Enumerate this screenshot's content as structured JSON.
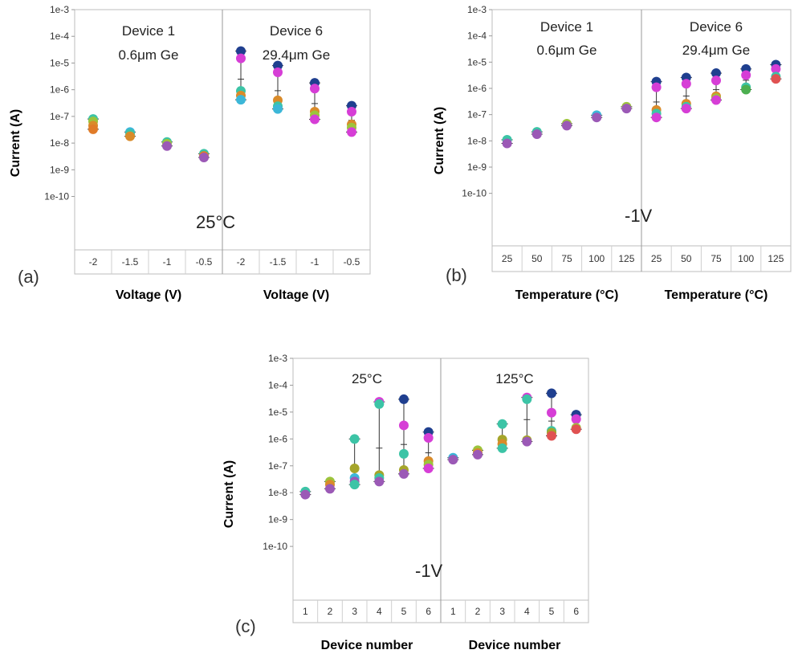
{
  "chart_data": [
    {
      "panel": "(a)",
      "type": "scatter",
      "yscale": "log",
      "ylabel": "Current (A)",
      "ylim": [
        1e-11,
        0.001
      ],
      "yticks": [
        "1e-3",
        "1e-4",
        "1e-5",
        "1e-6",
        "1e-7",
        "1e-8",
        "1e-9",
        "1e-10"
      ],
      "condition": "25°C",
      "groups": [
        {
          "title": [
            "Device 1",
            "0.6μm Ge"
          ],
          "xlabel": "Voltage (V)",
          "categories": [
            "-2",
            "-1.5",
            "-1",
            "-0.5"
          ],
          "points": [
            {
              "x": "-2",
              "y": 8e-08,
              "color": "#3cc4a6"
            },
            {
              "x": "-2",
              "y": 6.5e-08,
              "color": "#9cc43c"
            },
            {
              "x": "-2",
              "y": 4.5e-08,
              "color": "#d98b2a"
            },
            {
              "x": "-2",
              "y": 3.3e-08,
              "color": "#e07b28"
            },
            {
              "x": "-1.5",
              "y": 2.6e-08,
              "color": "#3cb7d8"
            },
            {
              "x": "-1.5",
              "y": 2.2e-08,
              "color": "#3cc4a6"
            },
            {
              "x": "-1.5",
              "y": 1.8e-08,
              "color": "#d98b2a"
            },
            {
              "x": "-1",
              "y": 1.1e-08,
              "color": "#3cc4a6"
            },
            {
              "x": "-1",
              "y": 9.5e-09,
              "color": "#9cc43c"
            },
            {
              "x": "-1",
              "y": 7.8e-09,
              "color": "#9b59b6"
            },
            {
              "x": "-0.5",
              "y": 4e-09,
              "color": "#3cc4a6"
            },
            {
              "x": "-0.5",
              "y": 3.3e-09,
              "color": "#e07b28"
            },
            {
              "x": "-0.5",
              "y": 2.9e-09,
              "color": "#9b59b6"
            }
          ]
        },
        {
          "title": [
            "Device 6",
            "29.4μm Ge"
          ],
          "xlabel": "Voltage (V)",
          "categories": [
            "-2",
            "-1.5",
            "-1",
            "-0.5"
          ],
          "points": [
            {
              "x": "-2",
              "y": 2.8e-05,
              "color": "#1f3f8f"
            },
            {
              "x": "-2",
              "y": 1.5e-05,
              "color": "#d63ed6"
            },
            {
              "x": "-2",
              "y": 9e-07,
              "color": "#3cc4a6"
            },
            {
              "x": "-2",
              "y": 6e-07,
              "color": "#d98b2a"
            },
            {
              "x": "-2",
              "y": 4.2e-07,
              "color": "#3cb7d8"
            },
            {
              "x": "-1.5",
              "y": 8e-06,
              "color": "#1f3f8f"
            },
            {
              "x": "-1.5",
              "y": 4.5e-06,
              "color": "#d63ed6"
            },
            {
              "x": "-1.5",
              "y": 4e-07,
              "color": "#d98b2a"
            },
            {
              "x": "-1.5",
              "y": 2.4e-07,
              "color": "#3cc4a6"
            },
            {
              "x": "-1.5",
              "y": 1.9e-07,
              "color": "#3cb7d8"
            },
            {
              "x": "-1",
              "y": 1.8e-06,
              "color": "#1f3f8f"
            },
            {
              "x": "-1",
              "y": 1.1e-06,
              "color": "#d63ed6"
            },
            {
              "x": "-1",
              "y": 1.5e-07,
              "color": "#d98b2a"
            },
            {
              "x": "-1",
              "y": 1.1e-07,
              "color": "#9cc43c"
            },
            {
              "x": "-1",
              "y": 7.8e-08,
              "color": "#d63ed6"
            },
            {
              "x": "-0.5",
              "y": 2.5e-07,
              "color": "#1f3f8f"
            },
            {
              "x": "-0.5",
              "y": 1.5e-07,
              "color": "#d63ed6"
            },
            {
              "x": "-0.5",
              "y": 5e-08,
              "color": "#d98b2a"
            },
            {
              "x": "-0.5",
              "y": 3.8e-08,
              "color": "#9cc43c"
            },
            {
              "x": "-0.5",
              "y": 2.6e-08,
              "color": "#d63ed6"
            }
          ]
        }
      ]
    },
    {
      "panel": "(b)",
      "type": "scatter",
      "yscale": "log",
      "ylabel": "Current (A)",
      "ylim": [
        1e-11,
        0.001
      ],
      "yticks": [
        "1e-3",
        "1e-4",
        "1e-5",
        "1e-6",
        "1e-7",
        "1e-8",
        "1e-9",
        "1e-10"
      ],
      "condition": "-1V",
      "groups": [
        {
          "title": [
            "Device 1",
            "0.6μm Ge"
          ],
          "xlabel": "Temperature (°C)",
          "categories": [
            "25",
            "50",
            "75",
            "100",
            "125"
          ],
          "points": [
            {
              "x": "25",
              "y": 1.1e-08,
              "color": "#3cc4a6"
            },
            {
              "x": "25",
              "y": 8e-09,
              "color": "#9b59b6"
            },
            {
              "x": "50",
              "y": 2.2e-08,
              "color": "#3cc4a6"
            },
            {
              "x": "50",
              "y": 1.8e-08,
              "color": "#9b59b6"
            },
            {
              "x": "75",
              "y": 4.5e-08,
              "color": "#9cc43c"
            },
            {
              "x": "75",
              "y": 3.8e-08,
              "color": "#9b59b6"
            },
            {
              "x": "100",
              "y": 9.5e-08,
              "color": "#3cb7d8"
            },
            {
              "x": "100",
              "y": 7.8e-08,
              "color": "#9b59b6"
            },
            {
              "x": "125",
              "y": 2e-07,
              "color": "#9cc43c"
            },
            {
              "x": "125",
              "y": 1.7e-07,
              "color": "#9b59b6"
            }
          ]
        },
        {
          "title": [
            "Device 6",
            "29.4μm Ge"
          ],
          "xlabel": "Temperature (°C)",
          "categories": [
            "25",
            "50",
            "75",
            "100",
            "125"
          ],
          "points": [
            {
              "x": "25",
              "y": 1.8e-06,
              "color": "#1f3f8f"
            },
            {
              "x": "25",
              "y": 1.1e-06,
              "color": "#d63ed6"
            },
            {
              "x": "25",
              "y": 1.5e-07,
              "color": "#d98b2a"
            },
            {
              "x": "25",
              "y": 1.1e-07,
              "color": "#3cc4a6"
            },
            {
              "x": "25",
              "y": 7.8e-08,
              "color": "#d63ed6"
            },
            {
              "x": "50",
              "y": 2.6e-06,
              "color": "#1f3f8f"
            },
            {
              "x": "50",
              "y": 1.5e-06,
              "color": "#d63ed6"
            },
            {
              "x": "50",
              "y": 2.6e-07,
              "color": "#d98b2a"
            },
            {
              "x": "50",
              "y": 2e-07,
              "color": "#3cc4a6"
            },
            {
              "x": "50",
              "y": 1.7e-07,
              "color": "#d63ed6"
            },
            {
              "x": "75",
              "y": 3.8e-06,
              "color": "#1f3f8f"
            },
            {
              "x": "75",
              "y": 2e-06,
              "color": "#d63ed6"
            },
            {
              "x": "75",
              "y": 5e-07,
              "color": "#d98b2a"
            },
            {
              "x": "75",
              "y": 4.2e-07,
              "color": "#9cc43c"
            },
            {
              "x": "75",
              "y": 3.6e-07,
              "color": "#d63ed6"
            },
            {
              "x": "100",
              "y": 5.5e-06,
              "color": "#1f3f8f"
            },
            {
              "x": "100",
              "y": 3.2e-06,
              "color": "#d63ed6"
            },
            {
              "x": "100",
              "y": 1.1e-06,
              "color": "#3cc4a6"
            },
            {
              "x": "100",
              "y": 9e-07,
              "color": "#4caf50"
            },
            {
              "x": "125",
              "y": 8e-06,
              "color": "#1f3f8f"
            },
            {
              "x": "125",
              "y": 5.5e-06,
              "color": "#d63ed6"
            },
            {
              "x": "125",
              "y": 2.8e-06,
              "color": "#3cc4a6"
            },
            {
              "x": "125",
              "y": 2.3e-06,
              "color": "#e05252"
            }
          ]
        }
      ]
    },
    {
      "panel": "(c)",
      "type": "scatter",
      "yscale": "log",
      "ylabel": "Current (A)",
      "ylim": [
        1e-11,
        0.001
      ],
      "yticks": [
        "1e-3",
        "1e-4",
        "1e-5",
        "1e-6",
        "1e-7",
        "1e-8",
        "1e-9",
        "1e-10"
      ],
      "condition": "-1V",
      "groups": [
        {
          "title": [
            "25°C"
          ],
          "xlabel": "Device number",
          "categories": [
            "1",
            "2",
            "3",
            "4",
            "5",
            "6"
          ],
          "points": [
            {
              "x": "1",
              "y": 1.1e-08,
              "color": "#3cc4a6"
            },
            {
              "x": "1",
              "y": 8.5e-09,
              "color": "#9b59b6"
            },
            {
              "x": "2",
              "y": 2.6e-08,
              "color": "#9cc43c"
            },
            {
              "x": "2",
              "y": 2e-08,
              "color": "#d98b2a"
            },
            {
              "x": "2",
              "y": 1.4e-08,
              "color": "#9b59b6"
            },
            {
              "x": "3",
              "y": 1e-06,
              "color": "#3cc4a6"
            },
            {
              "x": "3",
              "y": 8e-08,
              "color": "#a5a52a"
            },
            {
              "x": "3",
              "y": 3.5e-08,
              "color": "#3cb7d8"
            },
            {
              "x": "3",
              "y": 2.6e-08,
              "color": "#9b59b6"
            },
            {
              "x": "3",
              "y": 2e-08,
              "color": "#3cc4a6"
            },
            {
              "x": "4",
              "y": 2.4e-05,
              "color": "#d63ed6"
            },
            {
              "x": "4",
              "y": 2e-05,
              "color": "#3cc4a6"
            },
            {
              "x": "4",
              "y": 4.5e-08,
              "color": "#a5a52a"
            },
            {
              "x": "4",
              "y": 3.5e-08,
              "color": "#3cc4a6"
            },
            {
              "x": "4",
              "y": 2.6e-08,
              "color": "#9b59b6"
            },
            {
              "x": "5",
              "y": 3e-05,
              "color": "#1f3f8f"
            },
            {
              "x": "5",
              "y": 3.2e-06,
              "color": "#d63ed6"
            },
            {
              "x": "5",
              "y": 2.8e-07,
              "color": "#3cc4a6"
            },
            {
              "x": "5",
              "y": 7e-08,
              "color": "#a5a52a"
            },
            {
              "x": "5",
              "y": 5e-08,
              "color": "#9b59b6"
            },
            {
              "x": "6",
              "y": 1.8e-06,
              "color": "#1f3f8f"
            },
            {
              "x": "6",
              "y": 1.1e-06,
              "color": "#d63ed6"
            },
            {
              "x": "6",
              "y": 1.5e-07,
              "color": "#d98b2a"
            },
            {
              "x": "6",
              "y": 1.1e-07,
              "color": "#9cc43c"
            },
            {
              "x": "6",
              "y": 8e-08,
              "color": "#d63ed6"
            }
          ]
        },
        {
          "title": [
            "125°C"
          ],
          "xlabel": "Device number",
          "categories": [
            "1",
            "2",
            "3",
            "4",
            "5",
            "6"
          ],
          "points": [
            {
              "x": "1",
              "y": 2e-07,
              "color": "#3cb7d8"
            },
            {
              "x": "1",
              "y": 1.7e-07,
              "color": "#9b59b6"
            },
            {
              "x": "2",
              "y": 3.8e-07,
              "color": "#9cc43c"
            },
            {
              "x": "2",
              "y": 3e-07,
              "color": "#d98b2a"
            },
            {
              "x": "2",
              "y": 2.6e-07,
              "color": "#9b59b6"
            },
            {
              "x": "3",
              "y": 3.6e-06,
              "color": "#3cc4a6"
            },
            {
              "x": "3",
              "y": 9.5e-07,
              "color": "#a5a52a"
            },
            {
              "x": "3",
              "y": 6.5e-07,
              "color": "#d98b2a"
            },
            {
              "x": "3",
              "y": 4.5e-07,
              "color": "#3cc4a6"
            },
            {
              "x": "4",
              "y": 3.5e-05,
              "color": "#d63ed6"
            },
            {
              "x": "4",
              "y": 3e-05,
              "color": "#3cc4a6"
            },
            {
              "x": "4",
              "y": 9e-07,
              "color": "#a5a52a"
            },
            {
              "x": "4",
              "y": 8e-07,
              "color": "#9b59b6"
            },
            {
              "x": "5",
              "y": 5e-05,
              "color": "#1f3f8f"
            },
            {
              "x": "5",
              "y": 9.5e-06,
              "color": "#d63ed6"
            },
            {
              "x": "5",
              "y": 2e-06,
              "color": "#3cc4a6"
            },
            {
              "x": "5",
              "y": 1.7e-06,
              "color": "#a5a52a"
            },
            {
              "x": "5",
              "y": 1.3e-06,
              "color": "#e05252"
            },
            {
              "x": "6",
              "y": 8e-06,
              "color": "#1f3f8f"
            },
            {
              "x": "6",
              "y": 5.5e-06,
              "color": "#d63ed6"
            },
            {
              "x": "6",
              "y": 2.6e-06,
              "color": "#9cc43c"
            },
            {
              "x": "6",
              "y": 2.3e-06,
              "color": "#e05252"
            }
          ]
        }
      ]
    }
  ]
}
